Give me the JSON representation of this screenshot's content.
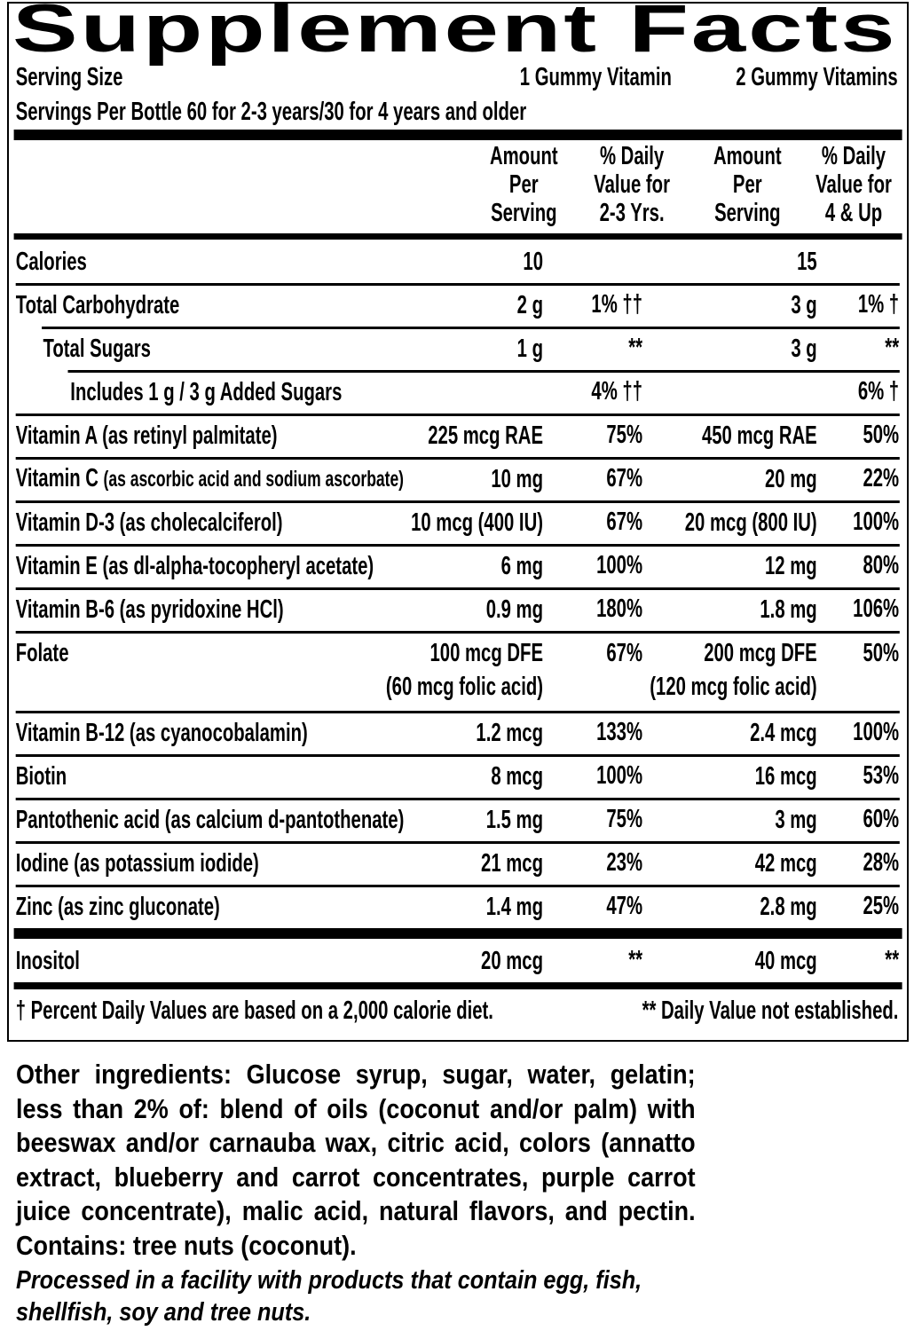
{
  "title": "Supplement Facts",
  "serving_size": {
    "label": "Serving Size",
    "amount_1": "1 Gummy Vitamin",
    "amount_2": "2 Gummy Vitamins"
  },
  "servings_per_bottle": "Servings Per Bottle 60 for 2-3 years/30 for 4 years and older",
  "column_headers": [
    [
      "Amount",
      "Per",
      "Serving"
    ],
    [
      "% Daily",
      "Value for",
      "2-3 Yrs."
    ],
    [
      "Amount",
      "Per",
      "Serving"
    ],
    [
      "% Daily",
      "Value for",
      "4 & Up"
    ]
  ],
  "rows": [
    {
      "name": "Calories",
      "amount_1": "10",
      "amount_2": "15"
    },
    {
      "name": "Total Carbohydrate",
      "amount_1": "2 g",
      "dv_1": "1% ††",
      "amount_2": "3 g",
      "dv_2": "1% †",
      "sub_rows": [
        {
          "name": "Total Sugars",
          "amount_1": "1 g",
          "dv_1": "**",
          "amount_2": "3 g",
          "dv_2": "**",
          "sub_rows": [
            {
              "name": "Includes 1 g / 3 g Added Sugars",
              "dv_1": "4% ††",
              "dv_2": "6% †"
            }
          ]
        }
      ]
    },
    {
      "name": "Vitamin A (as retinyl palmitate)",
      "amount_1": "225 mcg RAE",
      "dv_1": "75%",
      "amount_2": "450 mcg RAE",
      "dv_2": "50%"
    },
    {
      "name": "Vitamin C",
      "detail": "(as ascorbic acid and sodium ascorbate)",
      "amount_1": "10 mg",
      "dv_1": "67%",
      "amount_2": "20 mg",
      "dv_2": "22%"
    },
    {
      "name": "Vitamin D-3 (as cholecalciferol)",
      "amount_1": "10 mcg (400 IU)",
      "dv_1": "67%",
      "amount_2": "20 mcg (800 IU)",
      "dv_2": "100%"
    },
    {
      "name": "Vitamin E (as dl-alpha-tocopheryl acetate)",
      "amount_1": "6 mg",
      "dv_1": "100%",
      "amount_2": "12 mg",
      "dv_2": "80%"
    },
    {
      "name": "Vitamin B-6 (as pyridoxine HCl)",
      "amount_1": "0.9 mg",
      "dv_1": "180%",
      "amount_2": "1.8 mg",
      "dv_2": "106%"
    },
    {
      "name": "Folate",
      "amount_1": "100 mcg DFE",
      "amount_1_note": "(60 mcg folic acid)",
      "dv_1": "67%",
      "amount_2": "200 mcg DFE",
      "amount_2_note": "(120 mcg folic acid)",
      "dv_2": "50%"
    },
    {
      "name": "Vitamin B-12 (as cyanocobalamin)",
      "amount_1": "1.2 mcg",
      "dv_1": "133%",
      "amount_2": "2.4 mcg",
      "dv_2": "100%"
    },
    {
      "name": "Biotin",
      "amount_1": "8 mcg",
      "dv_1": "100%",
      "amount_2": "16 mcg",
      "dv_2": "53%"
    },
    {
      "name": "Pantothenic acid (as calcium d-pantothenate)",
      "amount_1": "1.5 mg",
      "dv_1": "75%",
      "amount_2": "3 mg",
      "dv_2": "60%"
    },
    {
      "name": "Iodine (as potassium iodide)",
      "amount_1": "21 mcg",
      "dv_1": "23%",
      "amount_2": "42 mcg",
      "dv_2": "28%"
    },
    {
      "name": "Zinc (as zinc gluconate)",
      "amount_1": "1.4 mg",
      "dv_1": "47%",
      "amount_2": "2.8 mg",
      "dv_2": "25%"
    }
  ],
  "additional_rows": [
    {
      "name": "Inositol",
      "amount_1": "20 mcg",
      "dv_1": "**",
      "amount_2": "40 mcg",
      "dv_2": "**"
    }
  ],
  "footnotes": {
    "dagger": "† Percent Daily Values are based on a 2,000 calorie diet.",
    "double_asterisk": "** Daily Value not established."
  },
  "other_ingredients": "Other ingredients: Glucose syrup, sugar, water, gelatin; less than 2% of: blend of oils (coconut and/or palm) with beeswax and/or carnauba wax, citric acid, colors (annatto extract, blueberry and carrot concentrates, purple carrot juice concentrate), malic acid, natural flavors, and pectin. Contains: tree nuts (coconut).",
  "allergen_note": "Processed in a facility with products that contain egg, fish, shellfish, soy and tree nuts."
}
